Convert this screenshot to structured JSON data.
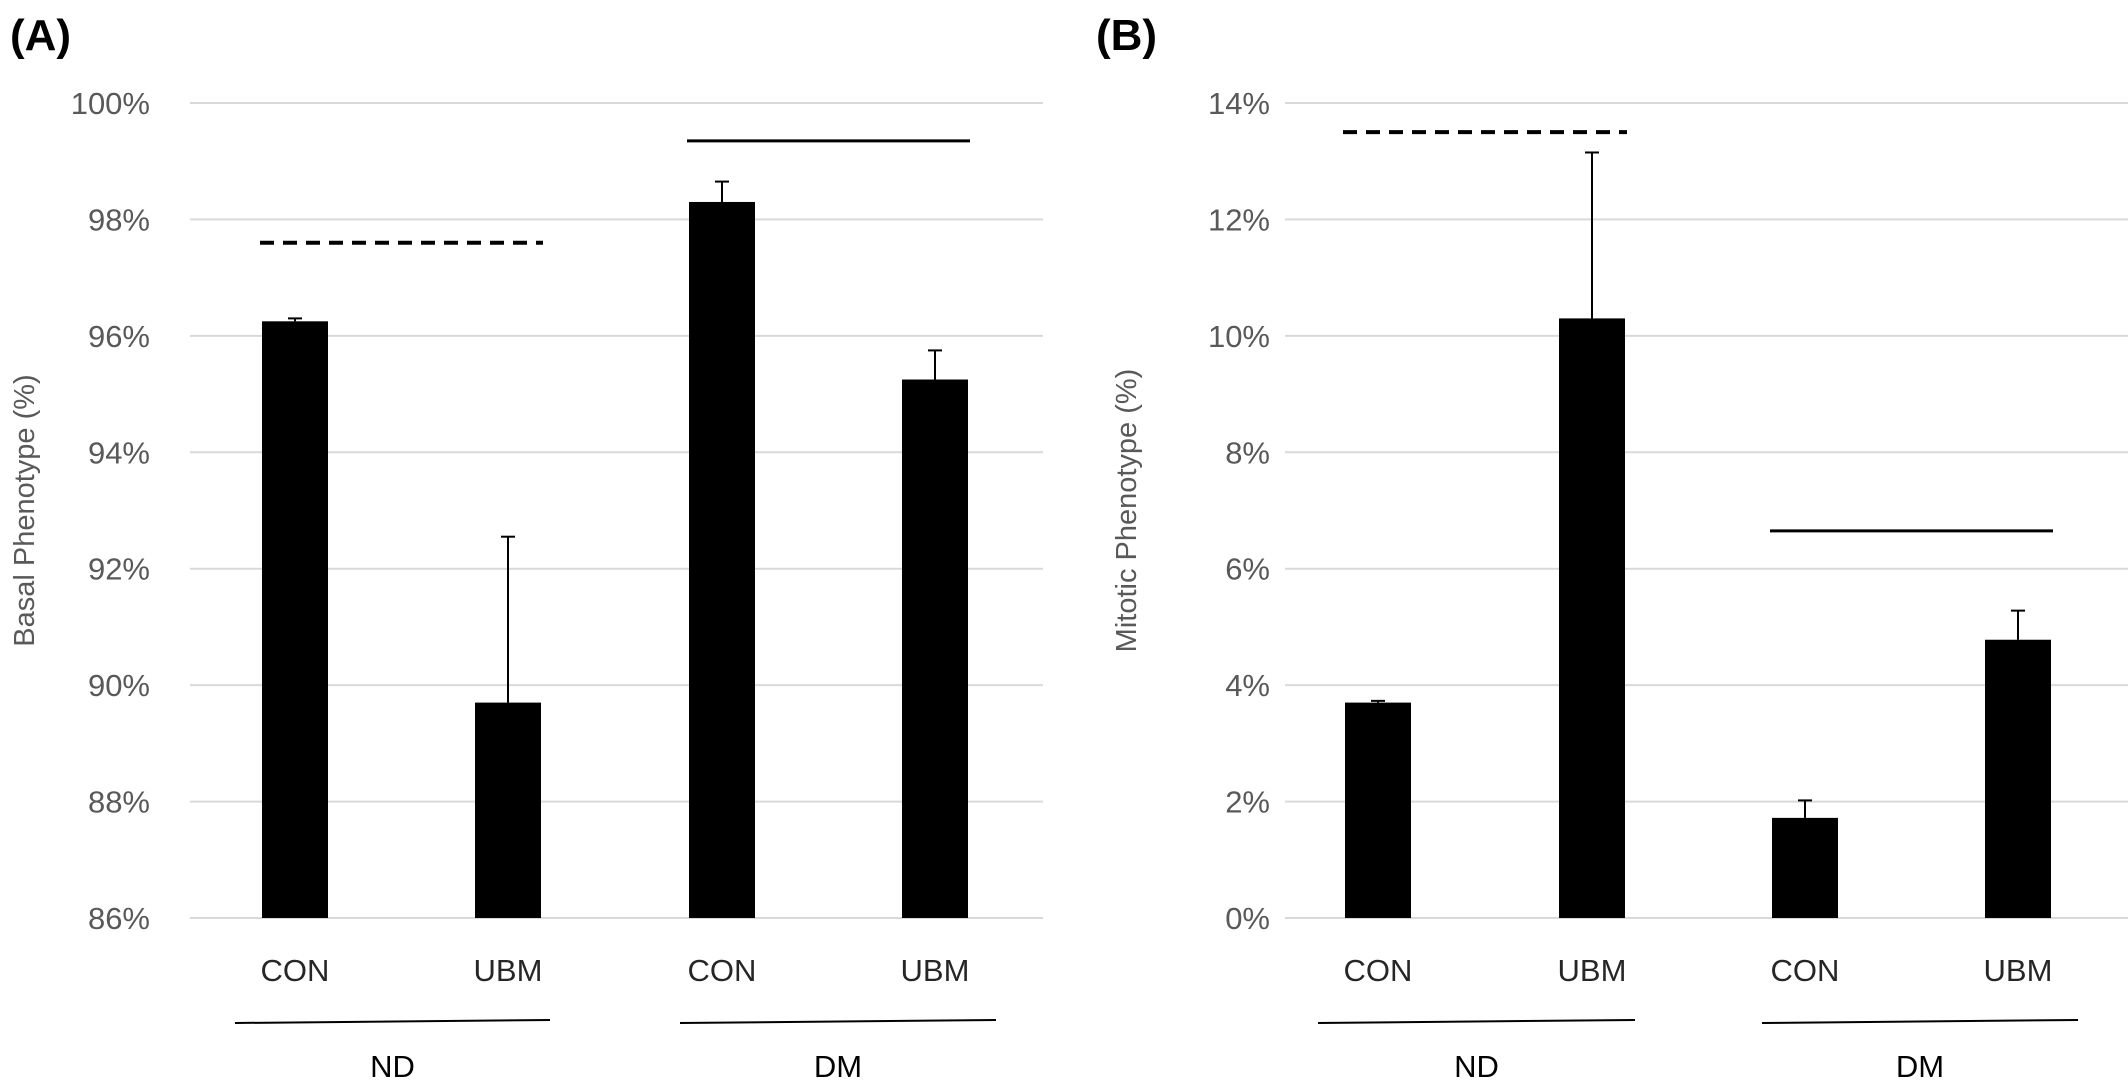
{
  "chart_data": [
    {
      "type": "bar",
      "panel": "(A)",
      "ylabel": "Basal Phenotype (%)",
      "ylim": [
        86,
        100
      ],
      "yticks": [
        "86%",
        "88%",
        "90%",
        "92%",
        "94%",
        "96%",
        "98%",
        "100%"
      ],
      "categories": [
        "CON",
        "UBM",
        "CON",
        "UBM"
      ],
      "groups": [
        {
          "label": "ND",
          "categories": [
            0,
            1
          ]
        },
        {
          "label": "DM",
          "categories": [
            2,
            3
          ]
        }
      ],
      "values": [
        96.25,
        89.7,
        98.3,
        95.25
      ],
      "error_plus": [
        0.05,
        2.85,
        0.35,
        0.5
      ],
      "significance": [
        {
          "from": 0,
          "to": 1,
          "style": "dashed",
          "y": 97.6
        },
        {
          "from": 2,
          "to": 3,
          "style": "solid",
          "y": 99.35
        }
      ],
      "grid": true,
      "bar_color": "#000000"
    },
    {
      "type": "bar",
      "panel": "(B)",
      "ylabel": "Mitotic Phenotype (%)",
      "ylim": [
        0,
        14
      ],
      "yticks": [
        "0%",
        "2%",
        "4%",
        "6%",
        "8%",
        "10%",
        "12%",
        "14%"
      ],
      "categories": [
        "CON",
        "UBM",
        "CON",
        "UBM"
      ],
      "groups": [
        {
          "label": "ND",
          "categories": [
            0,
            1
          ]
        },
        {
          "label": "DM",
          "categories": [
            2,
            3
          ]
        }
      ],
      "values": [
        3.7,
        10.3,
        1.72,
        4.78
      ],
      "error_plus": [
        0.03,
        2.85,
        0.3,
        0.5
      ],
      "significance": [
        {
          "from": 0,
          "to": 1,
          "style": "dashed",
          "y": 13.5
        },
        {
          "from": 2,
          "to": 3,
          "style": "solid",
          "y": 6.65
        }
      ],
      "grid": true,
      "bar_color": "#000000"
    }
  ]
}
